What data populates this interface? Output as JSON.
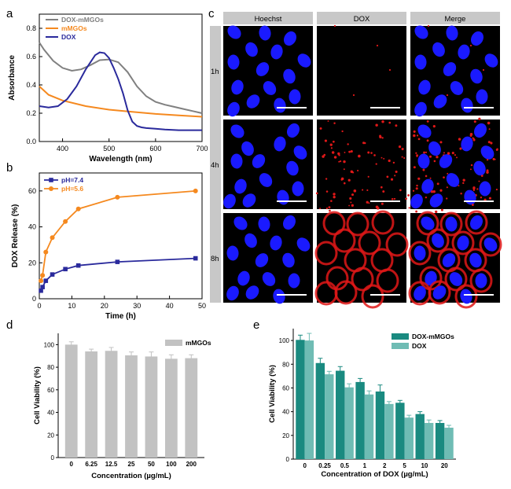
{
  "chart_data": [
    {
      "panel": "a",
      "type": "line",
      "xlabel": "Wavelength (nm)",
      "ylabel": "Absorbance",
      "xlim": [
        350,
        700
      ],
      "ylim": [
        0,
        0.9
      ],
      "xticks": [
        400,
        500,
        600,
        700
      ],
      "yticks": [
        0.0,
        0.2,
        0.4,
        0.6,
        0.8
      ],
      "legend_position": "top-left",
      "series": [
        {
          "name": "DOX-mMGOs",
          "color": "#808080",
          "x": [
            350,
            360,
            380,
            400,
            420,
            440,
            460,
            480,
            500,
            520,
            540,
            560,
            580,
            600,
            620,
            640,
            660,
            680,
            700
          ],
          "y": [
            0.7,
            0.65,
            0.57,
            0.52,
            0.5,
            0.51,
            0.54,
            0.575,
            0.58,
            0.56,
            0.49,
            0.39,
            0.32,
            0.28,
            0.26,
            0.245,
            0.23,
            0.215,
            0.2
          ]
        },
        {
          "name": "mMGOs",
          "color": "#f5891f",
          "x": [
            350,
            370,
            400,
            450,
            500,
            550,
            600,
            650,
            700
          ],
          "y": [
            0.39,
            0.33,
            0.29,
            0.25,
            0.225,
            0.21,
            0.195,
            0.185,
            0.175
          ]
        },
        {
          "name": "DOX",
          "color": "#2a2a9c",
          "x": [
            350,
            370,
            390,
            410,
            430,
            450,
            470,
            480,
            490,
            500,
            510,
            520,
            530,
            540,
            550,
            560,
            570,
            580,
            600,
            620,
            650,
            700
          ],
          "y": [
            0.25,
            0.24,
            0.25,
            0.3,
            0.39,
            0.51,
            0.61,
            0.63,
            0.625,
            0.59,
            0.52,
            0.44,
            0.34,
            0.22,
            0.14,
            0.11,
            0.1,
            0.095,
            0.09,
            0.085,
            0.08,
            0.08
          ]
        }
      ]
    },
    {
      "panel": "b",
      "type": "line",
      "xlabel": "Time (h)",
      "ylabel": "DOX Release (%)",
      "xlim": [
        0,
        50
      ],
      "ylim": [
        0,
        70
      ],
      "xticks": [
        0,
        10,
        20,
        30,
        40,
        50
      ],
      "yticks": [
        0,
        20,
        40,
        60
      ],
      "legend_position": "top-left",
      "series": [
        {
          "name": "pH=7.4",
          "color": "#2a2a9c",
          "marker": "square",
          "x": [
            0.5,
            1,
            2,
            4,
            8,
            12,
            24,
            48
          ],
          "y": [
            4.5,
            6.5,
            10,
            13.5,
            16.5,
            18.5,
            20.5,
            22.5
          ]
        },
        {
          "name": "pH=5.6",
          "color": "#f5891f",
          "marker": "circle",
          "x": [
            0.5,
            1,
            2,
            4,
            8,
            12,
            24,
            48
          ],
          "y": [
            10,
            13,
            26,
            34,
            43,
            50,
            56.5,
            60
          ]
        }
      ]
    },
    {
      "panel": "d",
      "type": "bar",
      "xlabel": "Concentration (µg/mL)",
      "ylabel": "Cell Viability (%)",
      "ylim": [
        0,
        110
      ],
      "yticks": [
        0,
        20,
        40,
        60,
        80,
        100
      ],
      "legend_position": "top-right",
      "categories": [
        "0",
        "6.25",
        "12.5",
        "25",
        "50",
        "100",
        "200"
      ],
      "series": [
        {
          "name": "mMGOs",
          "color": "#c2c2c2",
          "values": [
            100,
            94,
            94.5,
            90.5,
            89.5,
            87.5,
            88
          ],
          "errors": [
            2.5,
            2,
            3,
            3,
            4,
            3.5,
            3
          ]
        }
      ]
    },
    {
      "panel": "e",
      "type": "bar",
      "xlabel": "Concentration of DOX  (µg/mL)",
      "ylabel": "Cell Viability (%)",
      "ylim": [
        0,
        110
      ],
      "yticks": [
        0,
        20,
        40,
        60,
        80,
        100
      ],
      "legend_position": "top-right",
      "categories": [
        "0",
        "0.25",
        "0.5",
        "1",
        "2",
        "5",
        "10",
        "20"
      ],
      "series": [
        {
          "name": "DOX-mMGOs",
          "color": "#1a8a80",
          "values": [
            100.5,
            81,
            74.5,
            65,
            57,
            47.5,
            38,
            30.5
          ],
          "errors": [
            4,
            4,
            3.5,
            3,
            5.5,
            2,
            2,
            2
          ]
        },
        {
          "name": "DOX",
          "color": "#6fbcb4",
          "values": [
            100,
            71.5,
            60.5,
            54.5,
            46.5,
            35,
            30.5,
            26.5
          ],
          "errors": [
            6,
            2.5,
            3,
            3,
            2,
            2,
            2.5,
            2
          ]
        }
      ]
    }
  ],
  "panel_labels": {
    "a": "a",
    "b": "b",
    "c": "c",
    "d": "d",
    "e": "e"
  },
  "microscopy": {
    "columns": [
      "Hoechst",
      "DOX",
      "Merge"
    ],
    "rows": [
      "1h",
      "4h",
      "8h"
    ],
    "colors": {
      "nucleus": "#1a1aff",
      "dox": "#e01818",
      "background": "#000000",
      "header": "#c8c8c8"
    }
  }
}
